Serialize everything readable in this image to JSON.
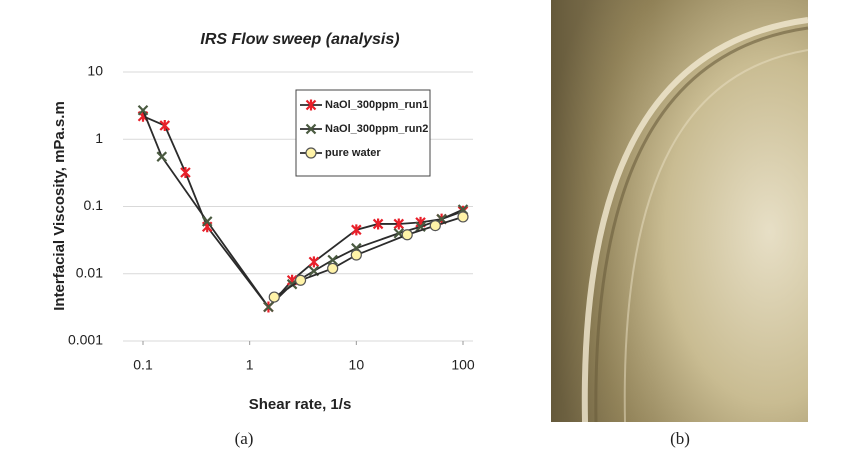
{
  "chart_data": {
    "type": "line",
    "title": "IRS Flow sweep (analysis)",
    "x_label": "Shear rate, 1/s",
    "y_label": "Interfacial Viscosity, mPa.s.m",
    "xscale": "log",
    "yscale": "log",
    "xlim": [
      0.1,
      100
    ],
    "ylim": [
      0.001,
      10
    ],
    "xticks": [
      0.1,
      1,
      10,
      100
    ],
    "yticks": [
      0.001,
      0.01,
      0.1,
      1,
      10
    ],
    "grid": true,
    "legend": "upper right",
    "series": [
      {
        "name": "NaOl_300ppm_run1",
        "color": "#e8202a",
        "marker": "star",
        "x": [
          0.1,
          0.16,
          0.25,
          0.4,
          1.5,
          2.5,
          4,
          10,
          16,
          25,
          40,
          63,
          100
        ],
        "values": [
          2.2,
          1.6,
          0.32,
          0.05,
          0.0032,
          0.008,
          0.015,
          0.045,
          0.055,
          0.055,
          0.058,
          0.065,
          0.085
        ]
      },
      {
        "name": "NaOl_300ppm_run2",
        "color": "#4a5a40",
        "marker": "x",
        "x": [
          0.1,
          0.15,
          0.4,
          1.5,
          2.5,
          4,
          6,
          10,
          25,
          40,
          63,
          100
        ],
        "values": [
          2.7,
          0.55,
          0.06,
          0.0032,
          0.007,
          0.011,
          0.016,
          0.024,
          0.04,
          0.05,
          0.065,
          0.09
        ]
      },
      {
        "name": "pure water",
        "color": "#fff3a8",
        "marker": "circle",
        "x": [
          1.7,
          3,
          6,
          10,
          30,
          55,
          100
        ],
        "values": [
          0.0045,
          0.008,
          0.012,
          0.019,
          0.038,
          0.052,
          0.07
        ]
      }
    ]
  },
  "panel_labels": [
    "(a)",
    "(b)"
  ]
}
